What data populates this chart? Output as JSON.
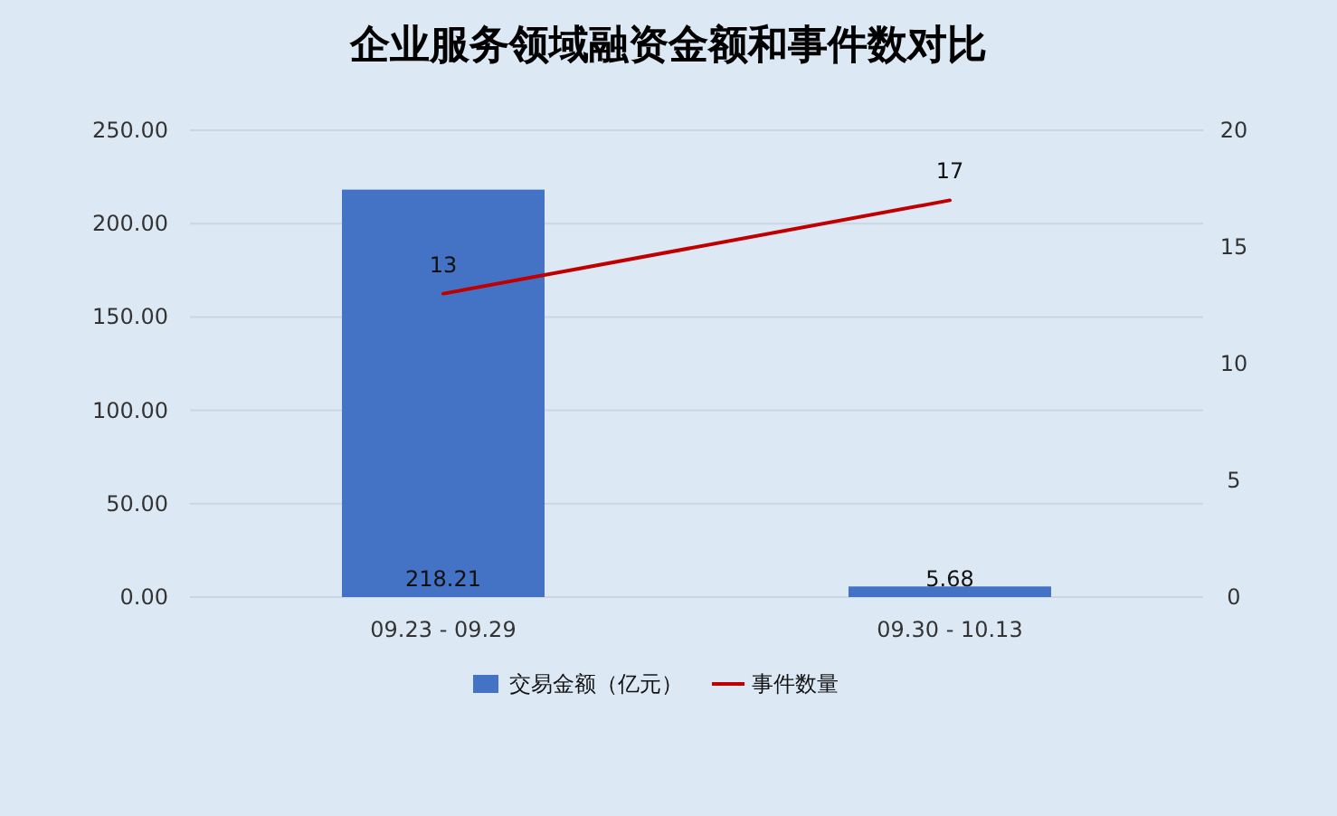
{
  "chart_data": {
    "type": "bar",
    "title": "企业服务领域融资金额和事件数对比",
    "categories": [
      "09.23 - 09.29",
      "09.30 - 10.13"
    ],
    "series": [
      {
        "name": "交易金额（亿元）",
        "color": "#4472c4",
        "values": [
          218.21,
          5.68
        ]
      },
      {
        "name": "事件数量",
        "type": "line",
        "axis": "y2",
        "color": "#c00000",
        "values": [
          13,
          17
        ]
      }
    ],
    "ylim": [
      0,
      250
    ],
    "yticks": [
      {
        "value": 0,
        "label": "0.00"
      },
      {
        "value": 50,
        "label": "50.00"
      },
      {
        "value": 100,
        "label": "100.00"
      },
      {
        "value": 150,
        "label": "150.00"
      },
      {
        "value": 200,
        "label": "200.00"
      },
      {
        "value": 250,
        "label": "250.00"
      }
    ],
    "y2lim": [
      0,
      20
    ],
    "y2ticks": [
      0,
      5,
      10,
      15,
      20
    ],
    "grid": "y",
    "legend": "bottom",
    "data_labels": true
  }
}
